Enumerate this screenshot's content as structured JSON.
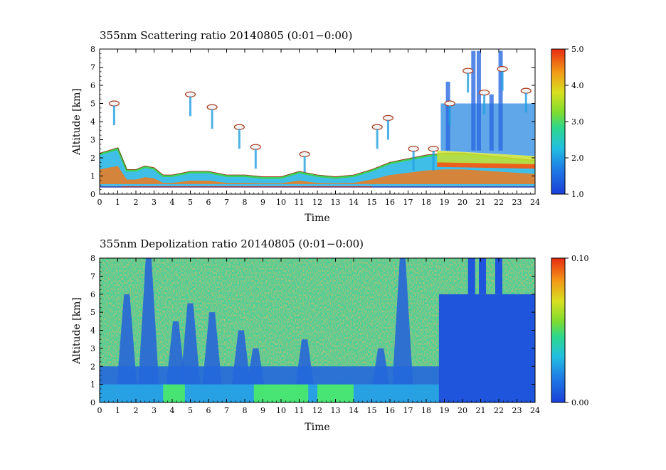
{
  "chart_data": [
    {
      "type": "heatmap",
      "title": "355nm Scattering ratio  20140805 (0:01−0:00)",
      "xlabel": "Time",
      "ylabel": "Altitude [km]",
      "xlim": [
        0,
        24
      ],
      "ylim": [
        0,
        8
      ],
      "xticks": [
        "0",
        "1",
        "2",
        "3",
        "4",
        "5",
        "6",
        "7",
        "8",
        "9",
        "10",
        "11",
        "12",
        "13",
        "14",
        "15",
        "16",
        "17",
        "18",
        "19",
        "20",
        "21",
        "22",
        "23",
        "24"
      ],
      "yticks": [
        "0",
        "1",
        "2",
        "3",
        "4",
        "5",
        "6",
        "7",
        "8"
      ],
      "colorbar": {
        "min": 1.0,
        "max": 5.0,
        "ticks": [
          "1.0",
          "2.0",
          "3.0",
          "4.0",
          "5.0"
        ]
      },
      "background_color": "#ffffff",
      "features": {
        "surface_line_km": 0.4,
        "boundary_layer_top_km": [
          [
            0,
            2.2
          ],
          [
            1,
            2.5
          ],
          [
            1.5,
            1.3
          ],
          [
            2,
            1.3
          ],
          [
            2.5,
            1.5
          ],
          [
            3,
            1.4
          ],
          [
            3.5,
            1.0
          ],
          [
            4,
            1.0
          ],
          [
            5,
            1.2
          ],
          [
            6,
            1.2
          ],
          [
            7,
            1.0
          ],
          [
            8,
            1.0
          ],
          [
            9,
            0.9
          ],
          [
            10,
            0.9
          ],
          [
            11,
            1.2
          ],
          [
            12,
            1.0
          ],
          [
            13,
            0.9
          ],
          [
            14,
            1.0
          ],
          [
            15,
            1.3
          ],
          [
            16,
            1.7
          ],
          [
            17,
            1.9
          ],
          [
            18,
            2.1
          ],
          [
            19,
            2.2
          ],
          [
            20,
            2.2
          ],
          [
            21,
            2.1
          ],
          [
            22,
            2.0
          ],
          [
            23,
            1.9
          ],
          [
            24,
            1.8
          ]
        ],
        "cloud_patches": [
          {
            "t": 0.8,
            "alt": 5.0
          },
          {
            "t": 5.0,
            "alt": 5.5
          },
          {
            "t": 6.2,
            "alt": 4.8
          },
          {
            "t": 7.7,
            "alt": 3.7
          },
          {
            "t": 8.6,
            "alt": 2.6
          },
          {
            "t": 11.3,
            "alt": 2.2
          },
          {
            "t": 15.3,
            "alt": 3.7
          },
          {
            "t": 15.9,
            "alt": 4.2
          },
          {
            "t": 17.3,
            "alt": 2.5
          },
          {
            "t": 18.4,
            "alt": 2.5
          },
          {
            "t": 19.3,
            "alt": 5.0
          },
          {
            "t": 20.3,
            "alt": 6.8
          },
          {
            "t": 21.2,
            "alt": 5.6
          },
          {
            "t": 22.2,
            "alt": 6.9
          },
          {
            "t": 23.5,
            "alt": 5.7
          }
        ]
      }
    },
    {
      "type": "heatmap",
      "title": "355nm Depolization ratio  20140805 (0:01−0:00)",
      "xlabel": "Time",
      "ylabel": "Altitude [km]",
      "xlim": [
        0,
        24
      ],
      "ylim": [
        0,
        8
      ],
      "xticks": [
        "0",
        "1",
        "2",
        "3",
        "4",
        "5",
        "6",
        "7",
        "8",
        "9",
        "10",
        "11",
        "12",
        "13",
        "14",
        "15",
        "16",
        "17",
        "18",
        "19",
        "20",
        "21",
        "22",
        "23",
        "24"
      ],
      "yticks": [
        "0",
        "1",
        "2",
        "3",
        "4",
        "5",
        "6",
        "7",
        "8"
      ],
      "colorbar": {
        "min": 0.0,
        "max": 0.1,
        "ticks": [
          "0.00",
          "0.10"
        ]
      },
      "features": {
        "low_depol_plumes": [
          {
            "t": 1.5,
            "top": 6.0
          },
          {
            "t": 2.7,
            "top": 8.0
          },
          {
            "t": 4.2,
            "top": 4.5
          },
          {
            "t": 5.0,
            "top": 5.5
          },
          {
            "t": 6.2,
            "top": 5.0
          },
          {
            "t": 7.8,
            "top": 4.0
          },
          {
            "t": 8.6,
            "top": 3.0
          },
          {
            "t": 11.3,
            "top": 3.5
          },
          {
            "t": 15.5,
            "top": 3.0
          },
          {
            "t": 16.7,
            "top": 8.0
          }
        ],
        "low_depol_region_after_hour": 18.7,
        "green_patches_0_to_1km": [
          [
            3.5,
            4.7
          ],
          [
            8.5,
            11.5
          ],
          [
            12.0,
            14.0
          ]
        ]
      }
    }
  ]
}
